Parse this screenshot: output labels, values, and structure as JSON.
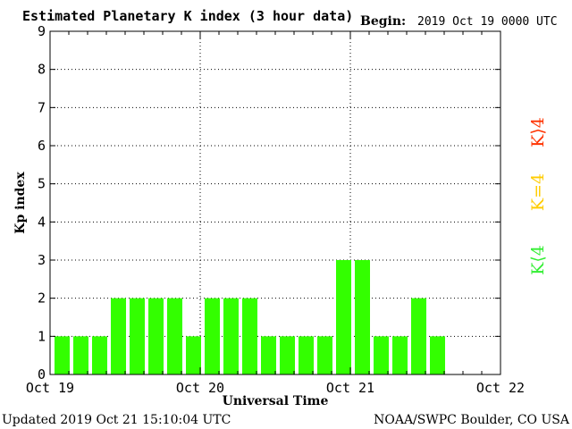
{
  "title": "Estimated Planetary K index (3 hour data)",
  "begin": {
    "label": "Begin:",
    "value": "2019 Oct 19 0000 UTC"
  },
  "footer": {
    "updated": "Updated 2019 Oct 21 15:10:04 UTC",
    "source": "NOAA/SWPC Boulder, CO USA"
  },
  "legend": {
    "high": {
      "label": "K⟩4",
      "color": "#ff3300"
    },
    "mid": {
      "label": "K=4",
      "color": "#ffcc00"
    },
    "low": {
      "label": "K⟨4",
      "color": "#33ee33"
    }
  },
  "chart_data": {
    "type": "bar",
    "title": "Estimated Planetary K index (3 hour data)",
    "xlabel": "Universal Time",
    "ylabel": "Kp index",
    "ylim": [
      0,
      9
    ],
    "yticks": [
      0,
      1,
      2,
      3,
      4,
      5,
      6,
      7,
      8,
      9
    ],
    "x_ticks": [
      "Oct 19",
      "Oct 20",
      "Oct 21",
      "Oct 22"
    ],
    "slots_per_day": 8,
    "grid": "dotted",
    "bar_color": "#33ff00",
    "values": [
      1,
      1,
      1,
      2,
      2,
      2,
      2,
      1,
      2,
      2,
      2,
      1,
      1,
      1,
      1,
      3,
      3,
      1,
      1,
      2,
      1
    ]
  }
}
